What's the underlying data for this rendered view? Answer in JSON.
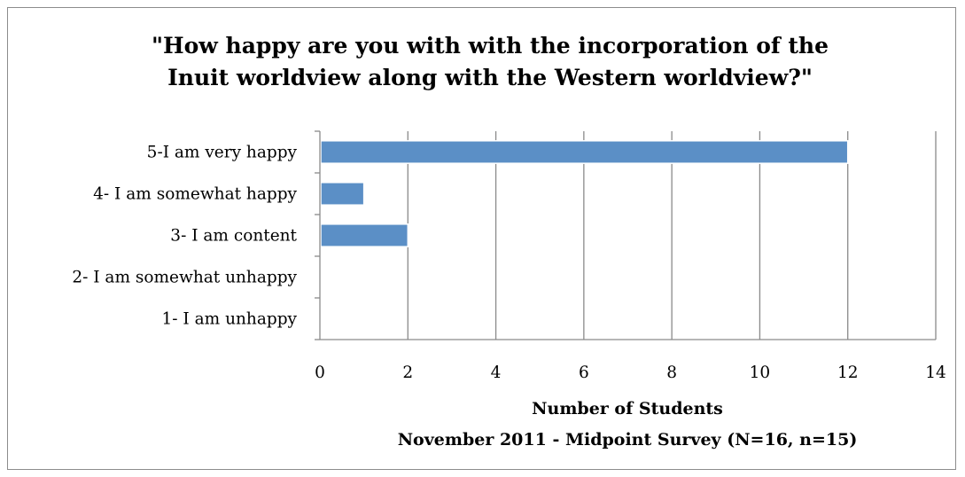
{
  "chart_data": {
    "type": "bar",
    "orientation": "horizontal",
    "title": "\"How happy are you with with the incorporation of the Inuit worldview along with the Western worldview?\"",
    "title_lines": [
      "\"How happy are you with with the incorporation of the",
      "Inuit worldview along with the Western worldview?\""
    ],
    "categories": [
      "5-I am very happy",
      "4- I am somewhat happy",
      "3- I am content",
      "2- I am somewhat unhappy",
      "1- I am unhappy"
    ],
    "values": [
      12,
      1,
      2,
      0,
      0
    ],
    "xlabel": "Number of Students",
    "subtitle": "November 2011 - Midpoint Survey (N=16, n=15)",
    "xlim": [
      0,
      14
    ],
    "xticks": [
      "0",
      "2",
      "4",
      "6",
      "8",
      "10",
      "12",
      "14"
    ],
    "grid": true,
    "legend": "none",
    "bar_color": "#5b8fc6",
    "bar_edge_color": "#ffffff"
  }
}
